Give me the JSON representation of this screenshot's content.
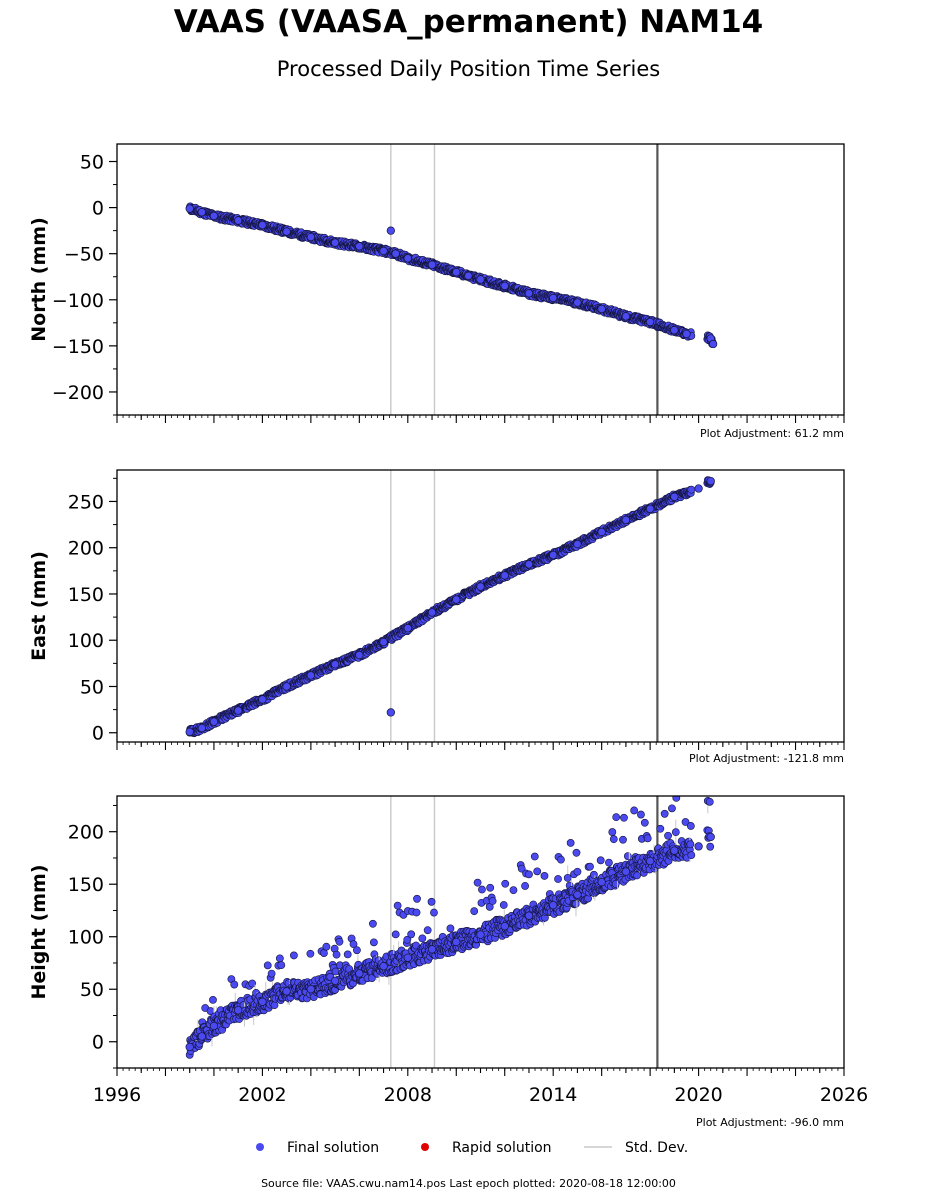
{
  "title": "VAAS (VAASA_permanent) NAM14",
  "subtitle": "Processed Daily Position Time Series",
  "source_line": "Source file: VAAS.cwu.nam14.pos  Last epoch plotted: 2020-08-18 12:00:00",
  "colors": {
    "final": "#4a4af0",
    "final_edge": "#14143c",
    "rapid": "#e00000",
    "stddev": "#c8c8c8",
    "marker_line": "#555555"
  },
  "legend": [
    {
      "label": "Final solution",
      "kind": "dot",
      "color": "#4a4af0"
    },
    {
      "label": "Rapid solution",
      "kind": "dot",
      "color": "#e00000"
    },
    {
      "label": "Std. Dev.",
      "kind": "line",
      "color": "#c8c8c8"
    }
  ],
  "chart_data": [
    {
      "type": "scatter",
      "ylabel": "North (mm)",
      "adjustment": "Plot Adjustment: 61.2 mm",
      "xlim": [
        1996,
        2026
      ],
      "ylim": [
        -225,
        69
      ],
      "yticks": [
        50,
        0,
        -50,
        -100,
        -150,
        -200
      ],
      "ytick_labels": [
        "50",
        "0",
        "−50",
        "−100",
        "−150",
        "−200"
      ],
      "series": [
        {
          "points": [
            [
              1999.0,
              -1
            ],
            [
              1999.5,
              -5
            ],
            [
              2000.0,
              -9
            ],
            [
              2001.0,
              -14
            ],
            [
              2002.0,
              -19
            ],
            [
              2003.0,
              -26
            ],
            [
              2004.0,
              -32
            ],
            [
              2005.0,
              -38
            ],
            [
              2006.0,
              -42
            ],
            [
              2007.0,
              -47
            ],
            [
              2007.5,
              -50
            ],
            [
              2008.0,
              -55
            ],
            [
              2009.0,
              -62
            ],
            [
              2010.0,
              -70
            ],
            [
              2010.5,
              -74
            ],
            [
              2011.0,
              -78
            ],
            [
              2012.0,
              -85
            ],
            [
              2013.0,
              -93
            ],
            [
              2014.0,
              -98
            ],
            [
              2015.0,
              -103
            ],
            [
              2016.0,
              -110
            ],
            [
              2017.0,
              -118
            ],
            [
              2018.0,
              -124
            ],
            [
              2019.0,
              -133
            ],
            [
              2019.5,
              -137
            ],
            [
              2020.5,
              -142
            ],
            [
              2020.6,
              -148
            ],
            [
              2007.3,
              -25
            ]
          ]
        }
      ],
      "vlines": [
        2007.3,
        2009.1,
        2018.3
      ]
    },
    {
      "type": "scatter",
      "ylabel": "East (mm)",
      "adjustment": "Plot Adjustment: -121.8 mm",
      "xlim": [
        1996,
        2026
      ],
      "ylim": [
        -10,
        284
      ],
      "yticks": [
        250,
        200,
        150,
        100,
        50,
        0
      ],
      "ytick_labels": [
        "250",
        "200",
        "150",
        "100",
        "50",
        "0"
      ],
      "series": [
        {
          "points": [
            [
              1999.0,
              1
            ],
            [
              1999.5,
              5
            ],
            [
              2000.0,
              12
            ],
            [
              2001.0,
              24
            ],
            [
              2002.0,
              36
            ],
            [
              2003.0,
              50
            ],
            [
              2004.0,
              62
            ],
            [
              2005.0,
              74
            ],
            [
              2006.0,
              84
            ],
            [
              2007.0,
              98
            ],
            [
              2008.0,
              113
            ],
            [
              2009.0,
              130
            ],
            [
              2010.0,
              144
            ],
            [
              2011.0,
              158
            ],
            [
              2012.0,
              170
            ],
            [
              2013.0,
              182
            ],
            [
              2014.0,
              192
            ],
            [
              2015.0,
              204
            ],
            [
              2016.0,
              217
            ],
            [
              2017.0,
              230
            ],
            [
              2018.0,
              242
            ],
            [
              2019.0,
              255
            ],
            [
              2020.0,
              264
            ],
            [
              2020.5,
              272
            ],
            [
              2007.3,
              22
            ]
          ]
        }
      ],
      "vlines": [
        2007.3,
        2009.1,
        2018.3
      ]
    },
    {
      "type": "scatter",
      "ylabel": "Height (mm)",
      "adjustment": "Plot Adjustment: -96.0 mm",
      "xlim": [
        1996,
        2026
      ],
      "ylim": [
        -25,
        234
      ],
      "xticks": [
        1996,
        2002,
        2008,
        2014,
        2020,
        2026
      ],
      "xtick_labels": [
        "1996",
        "2002",
        "2008",
        "2014",
        "2020",
        "2026"
      ],
      "yticks": [
        200,
        150,
        100,
        50,
        0
      ],
      "ytick_labels": [
        "200",
        "150",
        "100",
        "50",
        "0"
      ],
      "series": [
        {
          "points": [
            [
              1999.0,
              -5
            ],
            [
              1999.5,
              5
            ],
            [
              2000.0,
              15
            ],
            [
              2001.0,
              30
            ],
            [
              2002.0,
              38
            ],
            [
              2003.0,
              48
            ],
            [
              2004.0,
              50
            ],
            [
              2005.0,
              58
            ],
            [
              2006.0,
              65
            ],
            [
              2007.0,
              72
            ],
            [
              2008.0,
              80
            ],
            [
              2009.0,
              88
            ],
            [
              2010.0,
              95
            ],
            [
              2011.0,
              102
            ],
            [
              2012.0,
              110
            ],
            [
              2013.0,
              120
            ],
            [
              2014.0,
              130
            ],
            [
              2015.0,
              140
            ],
            [
              2016.0,
              152
            ],
            [
              2017.0,
              162
            ],
            [
              2018.0,
              172
            ],
            [
              2019.0,
              182
            ],
            [
              2020.0,
              186
            ],
            [
              2020.5,
              195
            ]
          ]
        }
      ],
      "vlines": [
        2007.3,
        2009.1,
        2018.3
      ]
    }
  ]
}
